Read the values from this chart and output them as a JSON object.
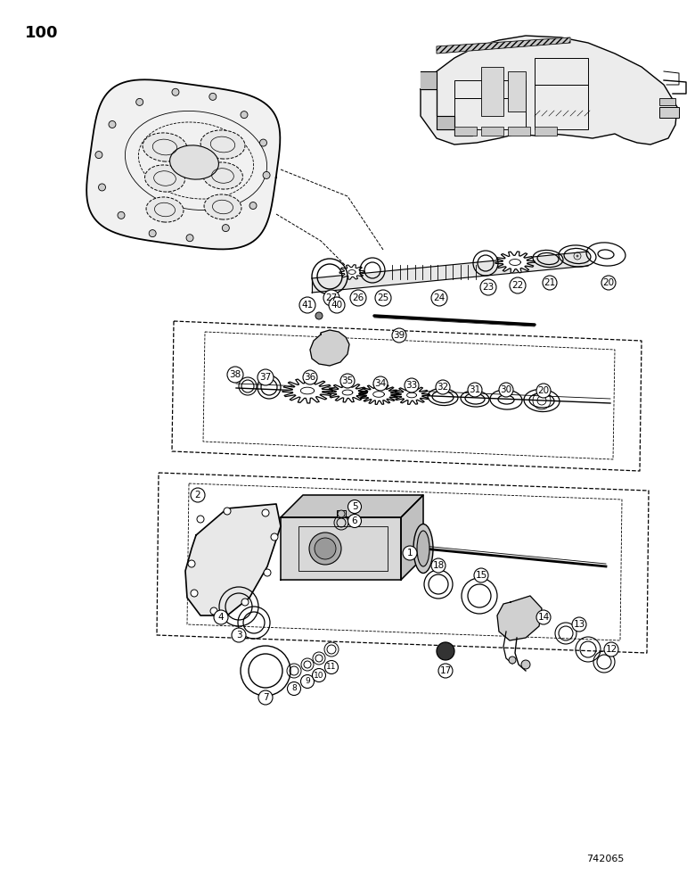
{
  "page_number": "100",
  "figure_number": "742065",
  "background_color": "#ffffff",
  "line_color": "#000000"
}
